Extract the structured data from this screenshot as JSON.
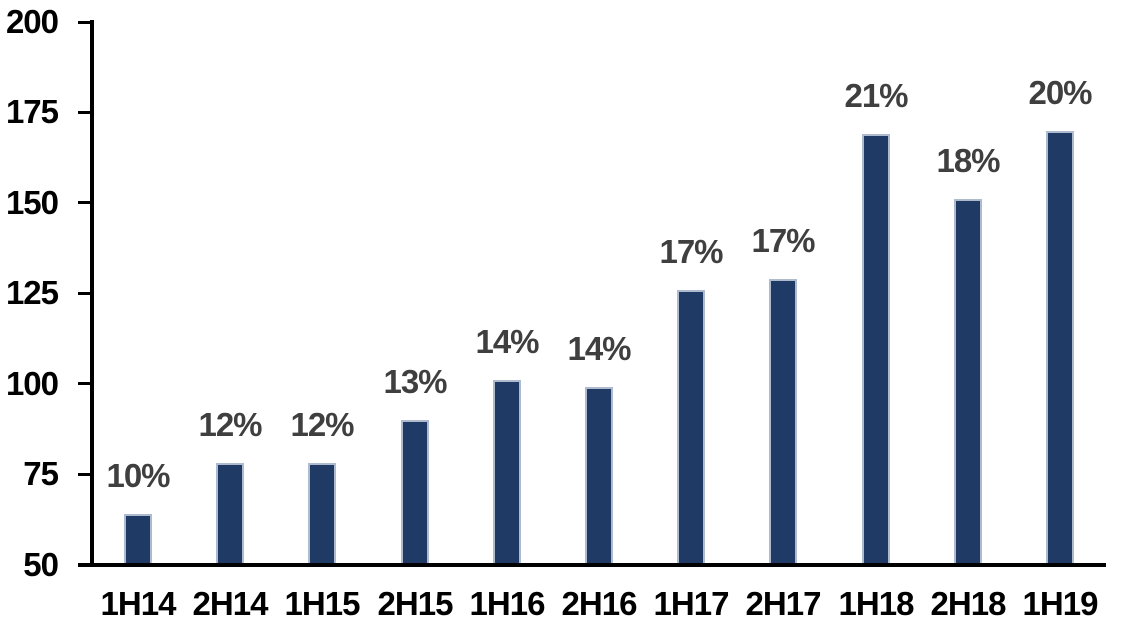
{
  "chart_data": {
    "type": "bar",
    "title": "",
    "xlabel": "",
    "ylabel": "",
    "categories": [
      "1H14",
      "2H14",
      "1H15",
      "2H15",
      "1H16",
      "2H16",
      "1H17",
      "2H17",
      "1H18",
      "2H18",
      "1H19"
    ],
    "values": [
      64,
      78,
      78,
      90,
      101,
      99,
      126,
      129,
      169,
      151,
      170
    ],
    "bar_labels": [
      "10%",
      "12%",
      "12%",
      "13%",
      "14%",
      "14%",
      "17%",
      "17%",
      "21%",
      "18%",
      "20%"
    ],
    "ylim": [
      50,
      200
    ],
    "yticks": [
      50,
      75,
      100,
      125,
      150,
      175,
      200
    ],
    "grid": false,
    "legend_position": "none",
    "colors": {
      "bar_fill": "#1F3A64",
      "bar_border": "#AEBACD",
      "axis": "#000000",
      "tick_text": "#000000",
      "data_label_text": "#3F3F3F",
      "background": "#FFFFFF"
    }
  }
}
